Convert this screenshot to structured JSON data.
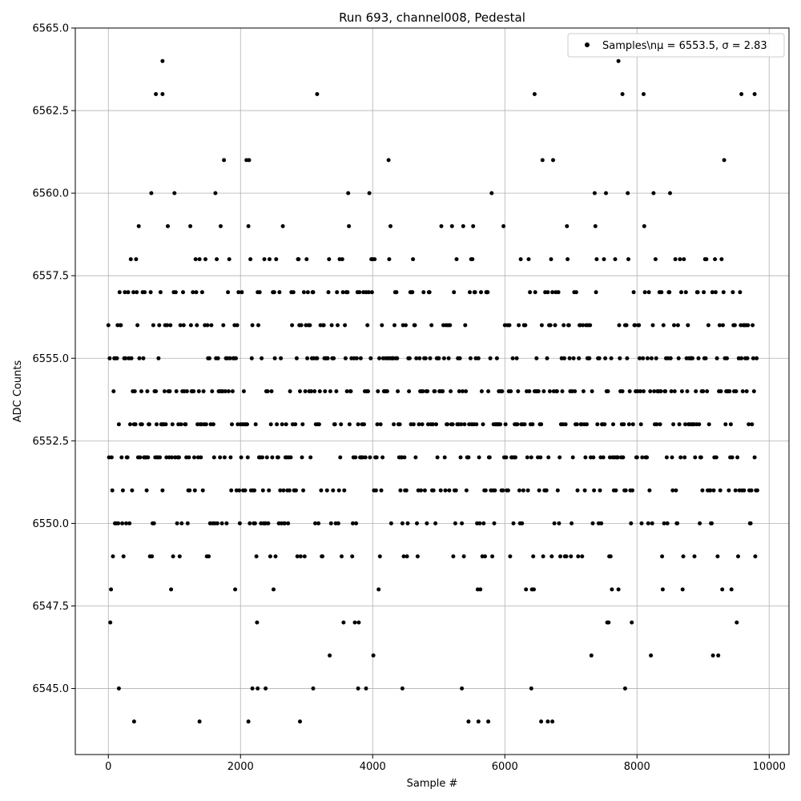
{
  "chart_data": {
    "type": "scatter",
    "title": "Run 693, channel008, Pedestal",
    "xlabel": "Sample #",
    "ylabel": "ADC Counts",
    "xlim": [
      -500,
      10300
    ],
    "ylim": [
      6543.0,
      6565.0
    ],
    "xticks": [
      0,
      2000,
      4000,
      6000,
      8000,
      10000
    ],
    "xtick_labels": [
      "0",
      "2000",
      "4000",
      "6000",
      "8000",
      "10000"
    ],
    "yticks": [
      6545.0,
      6547.5,
      6550.0,
      6552.5,
      6555.0,
      6557.5,
      6560.0,
      6562.5,
      6565.0
    ],
    "ytick_labels": [
      "6545.0",
      "6547.5",
      "6550.0",
      "6552.5",
      "6555.0",
      "6557.5",
      "6560.0",
      "6562.5",
      "6565.0"
    ],
    "grid": true,
    "legend": {
      "position": "top-right",
      "entries": [
        {
          "label": "Samples\\nμ = 6553.5, σ = 2.83",
          "marker": "dot",
          "color": "#000000"
        }
      ]
    },
    "series": [
      {
        "name": "Samples\\nμ = 6553.5, σ = 2.83",
        "color": "#000000",
        "x_range": [
          0,
          9820
        ],
        "mean": 6553.5,
        "sigma": 2.83,
        "levels": [
          6544,
          6545,
          6546,
          6547,
          6548,
          6549,
          6550,
          6551,
          6552,
          6553,
          6554,
          6555,
          6556,
          6557,
          6558,
          6559,
          6560,
          6561,
          6562,
          6563,
          6564
        ],
        "outliers": [
          {
            "x": 820,
            "y": 6564
          },
          {
            "x": 7720,
            "y": 6564
          },
          {
            "x": 720,
            "y": 6563
          },
          {
            "x": 820,
            "y": 6563
          },
          {
            "x": 3160,
            "y": 6563
          },
          {
            "x": 6450,
            "y": 6563
          },
          {
            "x": 7780,
            "y": 6563
          },
          {
            "x": 8100,
            "y": 6563
          },
          {
            "x": 9580,
            "y": 6563
          },
          {
            "x": 9780,
            "y": 6563
          },
          {
            "x": 160,
            "y": 6545
          },
          {
            "x": 2180,
            "y": 6545
          },
          {
            "x": 2260,
            "y": 6545
          },
          {
            "x": 2380,
            "y": 6545
          },
          {
            "x": 3100,
            "y": 6545
          },
          {
            "x": 3780,
            "y": 6545
          },
          {
            "x": 3900,
            "y": 6545
          },
          {
            "x": 4450,
            "y": 6545
          },
          {
            "x": 5350,
            "y": 6545
          },
          {
            "x": 6400,
            "y": 6545
          },
          {
            "x": 7820,
            "y": 6545
          },
          {
            "x": 390,
            "y": 6544
          },
          {
            "x": 1380,
            "y": 6544
          },
          {
            "x": 2120,
            "y": 6544
          },
          {
            "x": 2900,
            "y": 6544
          },
          {
            "x": 5450,
            "y": 6544
          },
          {
            "x": 5600,
            "y": 6544
          },
          {
            "x": 5750,
            "y": 6544
          },
          {
            "x": 6550,
            "y": 6544
          },
          {
            "x": 6650,
            "y": 6544
          },
          {
            "x": 6720,
            "y": 6544
          }
        ]
      }
    ]
  }
}
